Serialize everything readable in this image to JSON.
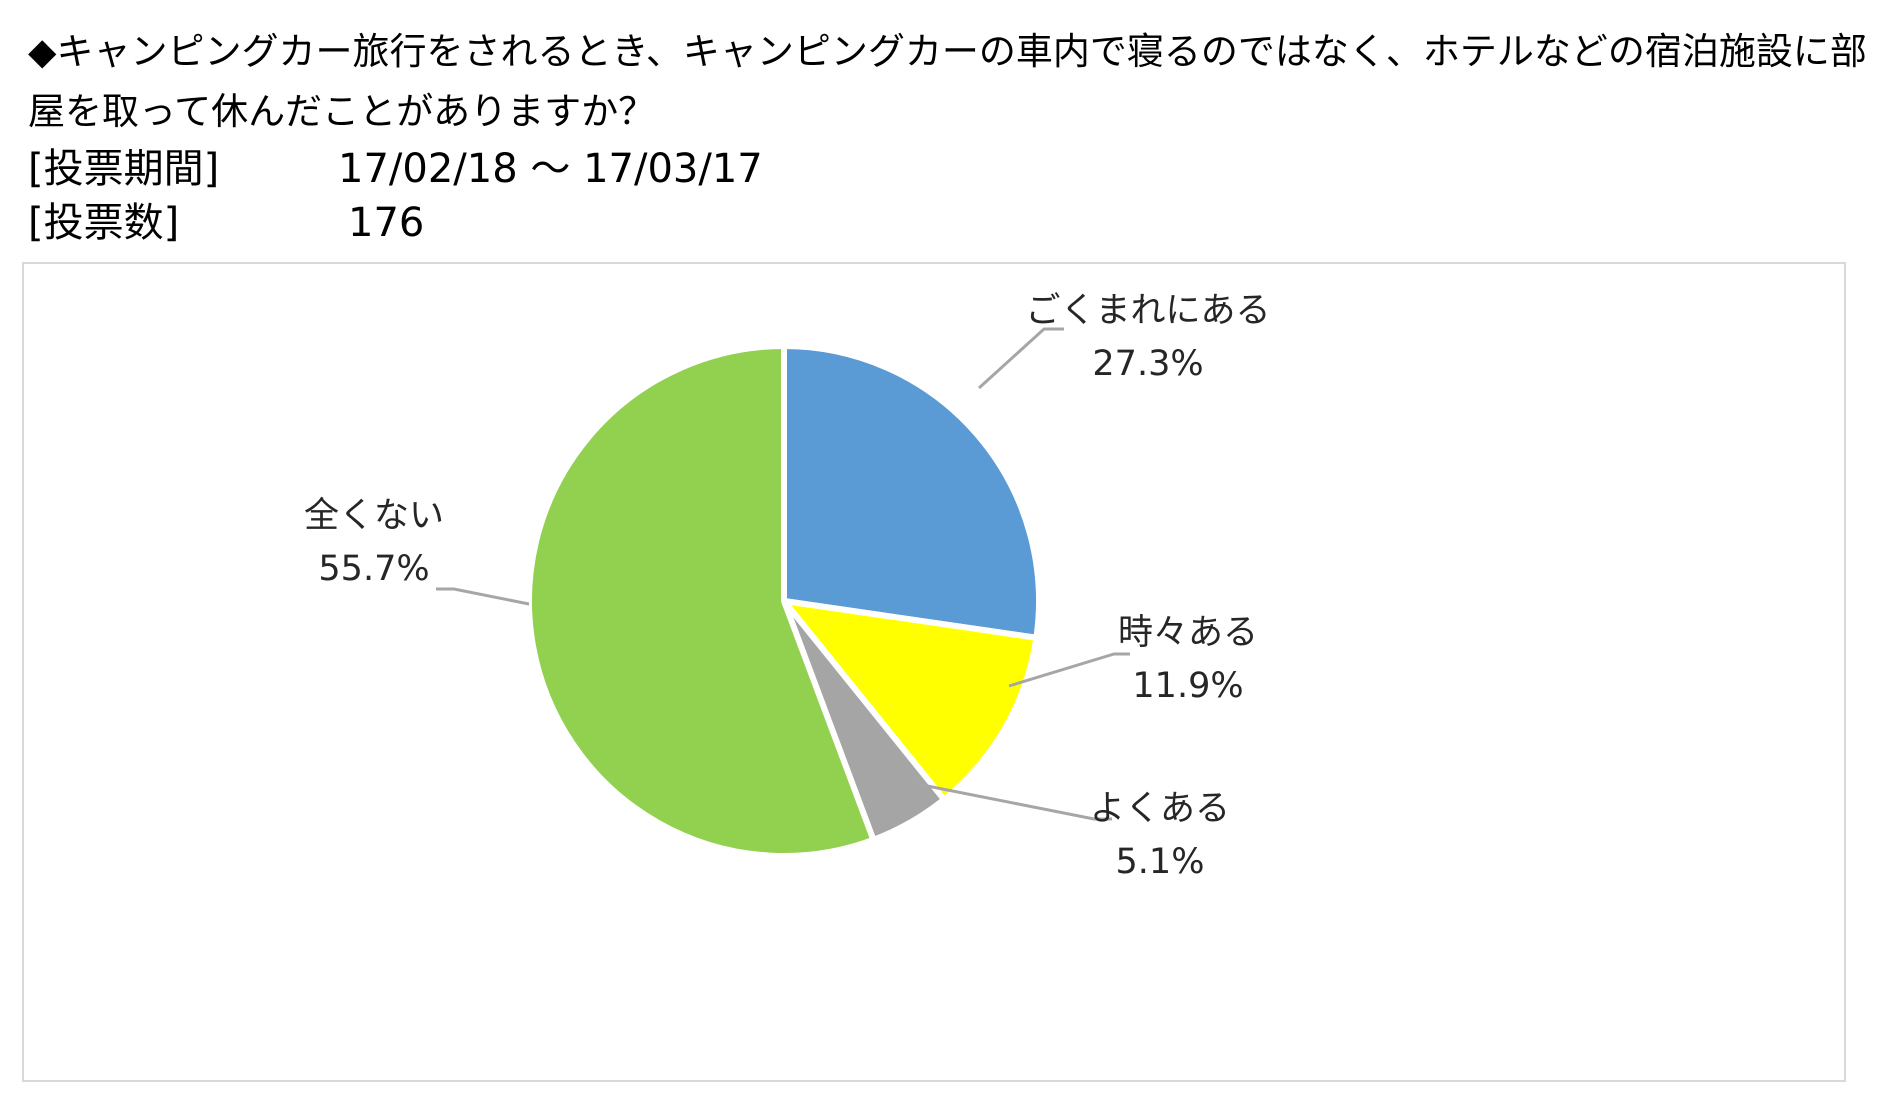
{
  "header": {
    "question": "◆キャンピングカー旅行をされるとき、キャンピングカーの車内で寝るのではなく、ホテルなどの宿泊施設に部屋を取って休んだことがありますか？",
    "period_label": "[投票期間]",
    "period_value": "17/02/18 ～ 17/03/17",
    "votes_label": "[投票数]",
    "votes_value": "176"
  },
  "chart_data": {
    "type": "pie",
    "title": "",
    "start_angle_deg": 0,
    "direction": "clockwise",
    "slices": [
      {
        "label": "ごくまれにある",
        "value": 27.3,
        "value_label": "27.3%",
        "color": "#5b9bd5"
      },
      {
        "label": "時々ある",
        "value": 11.9,
        "value_label": "11.9%",
        "color": "#ffff00"
      },
      {
        "label": "よくある",
        "value": 5.1,
        "value_label": "5.1%",
        "color": "#a5a5a5"
      },
      {
        "label": "全くない",
        "value": 55.7,
        "value_label": "55.7%",
        "color": "#92d050"
      }
    ],
    "leader_line_color": "#a6a6a6",
    "slice_border_color": "#ffffff"
  }
}
